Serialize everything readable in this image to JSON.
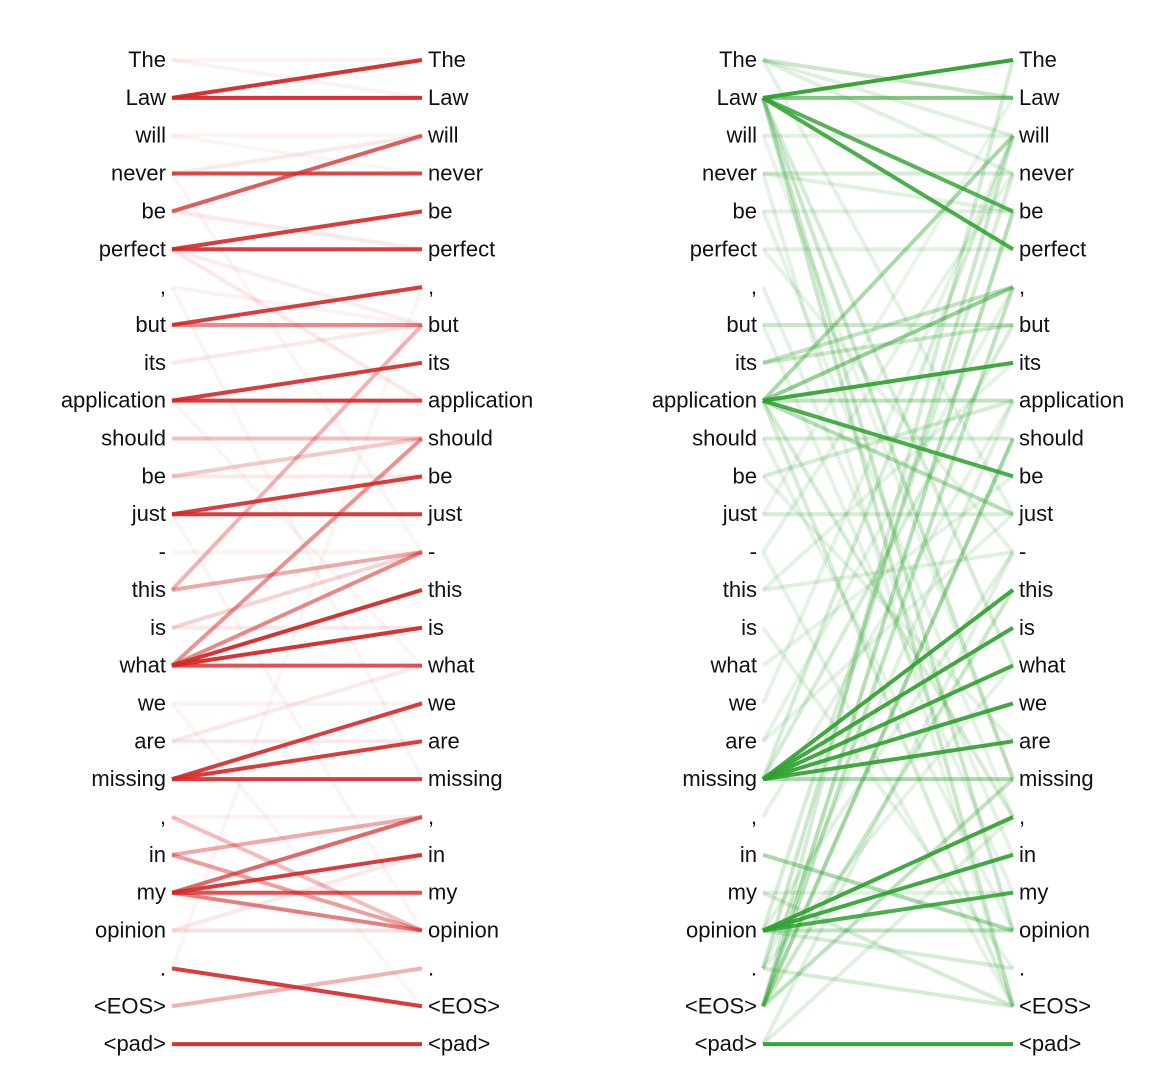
{
  "tokens": [
    "The",
    "Law",
    "will",
    "never",
    "be",
    "perfect",
    ",",
    "but",
    "its",
    "application",
    "should",
    "be",
    "just",
    "-",
    "this",
    "is",
    "what",
    "we",
    "are",
    "missing",
    ",",
    "in",
    "my",
    "opinion",
    ".",
    "<EOS>",
    "<pad>"
  ],
  "panels": [
    {
      "id": "left",
      "color": "#d62728",
      "edges": [
        {
          "s": 1,
          "t": 0,
          "w": 0.95
        },
        {
          "s": 1,
          "t": 1,
          "w": 0.95
        },
        {
          "s": 0,
          "t": 1,
          "w": 0.06
        },
        {
          "s": 0,
          "t": 0,
          "w": 0.06
        },
        {
          "s": 3,
          "t": 3,
          "w": 0.85
        },
        {
          "s": 4,
          "t": 2,
          "w": 0.75
        },
        {
          "s": 2,
          "t": 3,
          "w": 0.05
        },
        {
          "s": 3,
          "t": 2,
          "w": 0.1
        },
        {
          "s": 2,
          "t": 2,
          "w": 0.05
        },
        {
          "s": 5,
          "t": 4,
          "w": 0.9
        },
        {
          "s": 5,
          "t": 5,
          "w": 0.9
        },
        {
          "s": 5,
          "t": 9,
          "w": 0.1
        },
        {
          "s": 4,
          "t": 5,
          "w": 0.1
        },
        {
          "s": 5,
          "t": 7,
          "w": 0.08
        },
        {
          "s": 7,
          "t": 6,
          "w": 0.9
        },
        {
          "s": 7,
          "t": 7,
          "w": 0.55
        },
        {
          "s": 6,
          "t": 7,
          "w": 0.06
        },
        {
          "s": 8,
          "t": 7,
          "w": 0.1
        },
        {
          "s": 9,
          "t": 8,
          "w": 0.9
        },
        {
          "s": 9,
          "t": 9,
          "w": 0.9
        },
        {
          "s": 10,
          "t": 10,
          "w": 0.3
        },
        {
          "s": 11,
          "t": 10,
          "w": 0.25
        },
        {
          "s": 11,
          "t": 11,
          "w": 0.1
        },
        {
          "s": 12,
          "t": 11,
          "w": 0.9
        },
        {
          "s": 12,
          "t": 12,
          "w": 0.9
        },
        {
          "s": 14,
          "t": 7,
          "w": 0.35
        },
        {
          "s": 14,
          "t": 13,
          "w": 0.4
        },
        {
          "s": 15,
          "t": 13,
          "w": 0.2
        },
        {
          "s": 15,
          "t": 15,
          "w": 0.1
        },
        {
          "s": 16,
          "t": 10,
          "w": 0.5
        },
        {
          "s": 16,
          "t": 13,
          "w": 0.55
        },
        {
          "s": 16,
          "t": 14,
          "w": 0.95
        },
        {
          "s": 16,
          "t": 15,
          "w": 0.95
        },
        {
          "s": 16,
          "t": 16,
          "w": 0.8
        },
        {
          "s": 13,
          "t": 13,
          "w": 0.05
        },
        {
          "s": 17,
          "t": 17,
          "w": 0.06
        },
        {
          "s": 18,
          "t": 16,
          "w": 0.1
        },
        {
          "s": 19,
          "t": 17,
          "w": 0.9
        },
        {
          "s": 19,
          "t": 18,
          "w": 0.9
        },
        {
          "s": 19,
          "t": 19,
          "w": 0.9
        },
        {
          "s": 18,
          "t": 18,
          "w": 0.1
        },
        {
          "s": 20,
          "t": 20,
          "w": 0.06
        },
        {
          "s": 20,
          "t": 23,
          "w": 0.3
        },
        {
          "s": 21,
          "t": 20,
          "w": 0.4
        },
        {
          "s": 21,
          "t": 23,
          "w": 0.45
        },
        {
          "s": 22,
          "t": 20,
          "w": 0.7
        },
        {
          "s": 22,
          "t": 21,
          "w": 0.9
        },
        {
          "s": 22,
          "t": 22,
          "w": 0.8
        },
        {
          "s": 22,
          "t": 23,
          "w": 0.6
        },
        {
          "s": 23,
          "t": 23,
          "w": 0.15
        },
        {
          "s": 23,
          "t": 21,
          "w": 0.1
        },
        {
          "s": 24,
          "t": 25,
          "w": 0.9
        },
        {
          "s": 25,
          "t": 24,
          "w": 0.35
        },
        {
          "s": 26,
          "t": 26,
          "w": 0.95
        },
        {
          "s": 6,
          "t": 19,
          "w": 0.05
        },
        {
          "s": 3,
          "t": 13,
          "w": 0.05
        },
        {
          "s": 9,
          "t": 16,
          "w": 0.05
        },
        {
          "s": 12,
          "t": 23,
          "w": 0.05
        },
        {
          "s": 24,
          "t": 6,
          "w": 0.05
        },
        {
          "s": 17,
          "t": 25,
          "w": 0.04
        }
      ]
    },
    {
      "id": "right",
      "color": "#2ca02c",
      "edges": [
        {
          "s": 1,
          "t": 0,
          "w": 0.95
        },
        {
          "s": 1,
          "t": 1,
          "w": 0.6
        },
        {
          "s": 1,
          "t": 4,
          "w": 0.8
        },
        {
          "s": 1,
          "t": 5,
          "w": 0.85
        },
        {
          "s": 1,
          "t": 19,
          "w": 0.25
        },
        {
          "s": 1,
          "t": 23,
          "w": 0.25
        },
        {
          "s": 1,
          "t": 25,
          "w": 0.25
        },
        {
          "s": 1,
          "t": 16,
          "w": 0.2
        },
        {
          "s": 0,
          "t": 1,
          "w": 0.25
        },
        {
          "s": 0,
          "t": 2,
          "w": 0.15
        },
        {
          "s": 0,
          "t": 3,
          "w": 0.15
        },
        {
          "s": 2,
          "t": 2,
          "w": 0.15
        },
        {
          "s": 3,
          "t": 3,
          "w": 0.2
        },
        {
          "s": 3,
          "t": 4,
          "w": 0.15
        },
        {
          "s": 4,
          "t": 4,
          "w": 0.15
        },
        {
          "s": 5,
          "t": 5,
          "w": 0.15
        },
        {
          "s": 7,
          "t": 7,
          "w": 0.25
        },
        {
          "s": 8,
          "t": 6,
          "w": 0.3
        },
        {
          "s": 8,
          "t": 7,
          "w": 0.25
        },
        {
          "s": 9,
          "t": 8,
          "w": 0.9
        },
        {
          "s": 9,
          "t": 11,
          "w": 0.85
        },
        {
          "s": 9,
          "t": 6,
          "w": 0.5
        },
        {
          "s": 9,
          "t": 2,
          "w": 0.4
        },
        {
          "s": 9,
          "t": 12,
          "w": 0.35
        },
        {
          "s": 9,
          "t": 9,
          "w": 0.3
        },
        {
          "s": 9,
          "t": 25,
          "w": 0.2
        },
        {
          "s": 9,
          "t": 20,
          "w": 0.2
        },
        {
          "s": 10,
          "t": 10,
          "w": 0.2
        },
        {
          "s": 11,
          "t": 9,
          "w": 0.2
        },
        {
          "s": 12,
          "t": 12,
          "w": 0.2
        },
        {
          "s": 14,
          "t": 13,
          "w": 0.15
        },
        {
          "s": 19,
          "t": 14,
          "w": 0.9
        },
        {
          "s": 19,
          "t": 15,
          "w": 0.9
        },
        {
          "s": 19,
          "t": 16,
          "w": 0.9
        },
        {
          "s": 19,
          "t": 17,
          "w": 0.9
        },
        {
          "s": 19,
          "t": 18,
          "w": 0.9
        },
        {
          "s": 19,
          "t": 19,
          "w": 0.4
        },
        {
          "s": 19,
          "t": 7,
          "w": 0.2
        },
        {
          "s": 19,
          "t": 2,
          "w": 0.2
        },
        {
          "s": 23,
          "t": 20,
          "w": 0.9
        },
        {
          "s": 23,
          "t": 21,
          "w": 0.9
        },
        {
          "s": 23,
          "t": 22,
          "w": 0.85
        },
        {
          "s": 23,
          "t": 23,
          "w": 0.3
        },
        {
          "s": 23,
          "t": 24,
          "w": 0.2
        },
        {
          "s": 23,
          "t": 3,
          "w": 0.2
        },
        {
          "s": 23,
          "t": 13,
          "w": 0.15
        },
        {
          "s": 21,
          "t": 23,
          "w": 0.4
        },
        {
          "s": 22,
          "t": 22,
          "w": 0.15
        },
        {
          "s": 22,
          "t": 25,
          "w": 0.2
        },
        {
          "s": 25,
          "t": 10,
          "w": 0.45
        },
        {
          "s": 25,
          "t": 6,
          "w": 0.3
        },
        {
          "s": 25,
          "t": 4,
          "w": 0.35
        },
        {
          "s": 25,
          "t": 19,
          "w": 0.3
        },
        {
          "s": 25,
          "t": 14,
          "w": 0.25
        },
        {
          "s": 25,
          "t": 0,
          "w": 0.2
        },
        {
          "s": 24,
          "t": 2,
          "w": 0.25
        },
        {
          "s": 24,
          "t": 25,
          "w": 0.2
        },
        {
          "s": 24,
          "t": 9,
          "w": 0.15
        },
        {
          "s": 26,
          "t": 26,
          "w": 0.95
        },
        {
          "s": 26,
          "t": 13,
          "w": 0.15
        },
        {
          "s": 26,
          "t": 20,
          "w": 0.15
        },
        {
          "s": 0,
          "t": 12,
          "w": 0.12
        },
        {
          "s": 2,
          "t": 19,
          "w": 0.1
        },
        {
          "s": 5,
          "t": 13,
          "w": 0.12
        },
        {
          "s": 6,
          "t": 21,
          "w": 0.12
        },
        {
          "s": 10,
          "t": 23,
          "w": 0.12
        },
        {
          "s": 13,
          "t": 3,
          "w": 0.12
        },
        {
          "s": 14,
          "t": 8,
          "w": 0.12
        },
        {
          "s": 15,
          "t": 24,
          "w": 0.12
        },
        {
          "s": 16,
          "t": 11,
          "w": 0.12
        },
        {
          "s": 17,
          "t": 2,
          "w": 0.12
        },
        {
          "s": 18,
          "t": 6,
          "w": 0.12
        },
        {
          "s": 20,
          "t": 9,
          "w": 0.12
        },
        {
          "s": 24,
          "t": 16,
          "w": 0.12
        },
        {
          "s": 3,
          "t": 25,
          "w": 0.12
        },
        {
          "s": 7,
          "t": 22,
          "w": 0.12
        },
        {
          "s": 12,
          "t": 1,
          "w": 0.1
        },
        {
          "s": 11,
          "t": 18,
          "w": 0.12
        },
        {
          "s": 4,
          "t": 20,
          "w": 0.12
        },
        {
          "s": 18,
          "t": 12,
          "w": 0.12
        },
        {
          "s": 13,
          "t": 25,
          "w": 0.12
        }
      ]
    }
  ]
}
